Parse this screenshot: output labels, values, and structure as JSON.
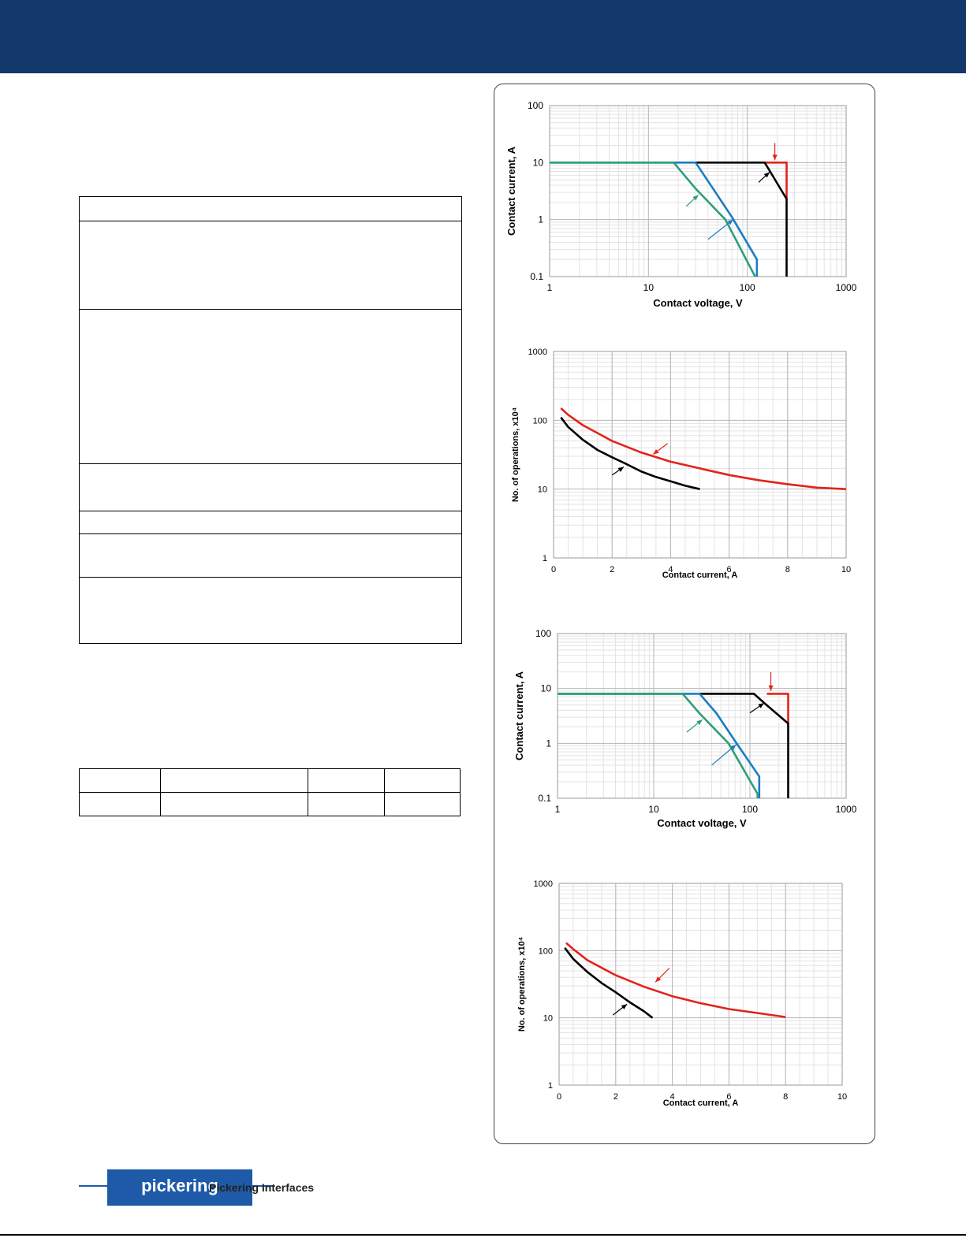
{
  "footer": {
    "logo_text": "pickering",
    "company": "Pickering Interfaces"
  },
  "colors": {
    "header": "#13386b",
    "red": "#e2231a",
    "black": "#000000",
    "blue": "#1a7dc4",
    "green": "#2e9e7a"
  },
  "charts": [
    {
      "type": "line",
      "xscale": "log",
      "yscale": "log",
      "xlim": [
        1,
        1000
      ],
      "ylim": [
        0.1,
        100
      ],
      "xticks": [
        "1",
        "10",
        "100",
        "1000"
      ],
      "yticks": [
        "0.1",
        "1",
        "10",
        "100"
      ],
      "xlabel": "Contact voltage, V",
      "ylabel": "Contact current, A",
      "series": [
        {
          "color": "red",
          "points": [
            [
              150,
              10
            ],
            [
              250,
              10
            ],
            [
              250,
              2.3
            ]
          ]
        },
        {
          "color": "black",
          "points": [
            [
              30,
              10
            ],
            [
              150,
              10
            ],
            [
              170,
              7
            ],
            [
              250,
              2.3
            ],
            [
              250,
              0.1
            ]
          ]
        },
        {
          "color": "blue",
          "points": [
            [
              1,
              10
            ],
            [
              30,
              10
            ],
            [
              45,
              3.5
            ],
            [
              70,
              1.1
            ],
            [
              125,
              0.2
            ],
            [
              125,
              0.1
            ]
          ]
        },
        {
          "color": "green",
          "points": [
            [
              1,
              10
            ],
            [
              18,
              10
            ],
            [
              30,
              3.5
            ],
            [
              60,
              1.0
            ],
            [
              120,
              0.1
            ]
          ]
        }
      ],
      "arrows": [
        {
          "color": "red",
          "from": [
            190,
            22
          ],
          "to": [
            190,
            11
          ]
        },
        {
          "color": "black",
          "from": [
            130,
            4.5
          ],
          "to": [
            168,
            6.8
          ]
        },
        {
          "color": "blue",
          "from": [
            40,
            0.45
          ],
          "to": [
            72,
            1.0
          ]
        },
        {
          "color": "green",
          "from": [
            24,
            1.7
          ],
          "to": [
            32,
            2.7
          ]
        }
      ]
    },
    {
      "type": "line",
      "xscale": "linear",
      "yscale": "log",
      "xlim": [
        0,
        10
      ],
      "ylim": [
        1,
        1000
      ],
      "xticks": [
        "0",
        "2",
        "4",
        "6",
        "8",
        "10"
      ],
      "yticks": [
        "1",
        "10",
        "100",
        "1000"
      ],
      "xlabel": "Contact current, A",
      "ylabel": "No. of operations, x10⁴",
      "series": [
        {
          "color": "red",
          "points": [
            [
              0.25,
              150
            ],
            [
              0.5,
              120
            ],
            [
              1,
              85
            ],
            [
              2,
              50
            ],
            [
              3,
              34
            ],
            [
              4,
              25
            ],
            [
              5,
              20
            ],
            [
              6,
              16
            ],
            [
              7,
              13.5
            ],
            [
              8,
              11.8
            ],
            [
              9,
              10.5
            ],
            [
              10,
              10
            ]
          ]
        },
        {
          "color": "black",
          "points": [
            [
              0.25,
              110
            ],
            [
              0.5,
              80
            ],
            [
              1,
              52
            ],
            [
              1.5,
              37
            ],
            [
              2,
              29
            ],
            [
              2.5,
              23
            ],
            [
              3,
              18
            ],
            [
              3.5,
              15
            ],
            [
              4,
              13
            ],
            [
              4.5,
              11.2
            ],
            [
              5,
              10
            ]
          ]
        }
      ],
      "arrows": [
        {
          "color": "red",
          "from": [
            3.9,
            46
          ],
          "to": [
            3.4,
            32
          ]
        },
        {
          "color": "black",
          "from": [
            2.0,
            16
          ],
          "to": [
            2.4,
            21
          ]
        }
      ]
    },
    {
      "type": "line",
      "xscale": "log",
      "yscale": "log",
      "xlim": [
        1,
        1000
      ],
      "ylim": [
        0.1,
        100
      ],
      "xticks": [
        "1",
        "10",
        "100",
        "1000"
      ],
      "yticks": [
        "0.1",
        "1",
        "10",
        "100"
      ],
      "xlabel": "Contact voltage, V",
      "ylabel": "Contact current, A",
      "series": [
        {
          "color": "red",
          "points": [
            [
              150,
              8
            ],
            [
              250,
              8
            ],
            [
              250,
              2.3
            ]
          ]
        },
        {
          "color": "black",
          "points": [
            [
              30,
              8
            ],
            [
              110,
              8
            ],
            [
              140,
              5.5
            ],
            [
              250,
              2.3
            ],
            [
              250,
              0.1
            ]
          ]
        },
        {
          "color": "blue",
          "points": [
            [
              1,
              8
            ],
            [
              30,
              8
            ],
            [
              45,
              3.5
            ],
            [
              70,
              1.1
            ],
            [
              125,
              0.25
            ],
            [
              125,
              0.1
            ]
          ]
        },
        {
          "color": "green",
          "points": [
            [
              1,
              8
            ],
            [
              20,
              8
            ],
            [
              30,
              3.5
            ],
            [
              60,
              1.0
            ],
            [
              120,
              0.12
            ],
            [
              120,
              0.1
            ]
          ]
        }
      ],
      "arrows": [
        {
          "color": "red",
          "from": [
            165,
            20
          ],
          "to": [
            165,
            9
          ]
        },
        {
          "color": "black",
          "from": [
            100,
            3.6
          ],
          "to": [
            140,
            5.4
          ]
        },
        {
          "color": "blue",
          "from": [
            40,
            0.4
          ],
          "to": [
            72,
            0.95
          ]
        },
        {
          "color": "green",
          "from": [
            22,
            1.6
          ],
          "to": [
            32,
            2.7
          ]
        }
      ]
    },
    {
      "type": "line",
      "xscale": "linear",
      "yscale": "log",
      "xlim": [
        0,
        10
      ],
      "ylim": [
        1,
        1000
      ],
      "xticks": [
        "0",
        "2",
        "4",
        "6",
        "8",
        "10"
      ],
      "yticks": [
        "1",
        "10",
        "100",
        "1000"
      ],
      "xlabel": "Contact current, A",
      "ylabel": "No. of operations, x10⁴",
      "series": [
        {
          "color": "red",
          "points": [
            [
              0.25,
              130
            ],
            [
              0.5,
              105
            ],
            [
              1,
              72
            ],
            [
              2,
              43
            ],
            [
              3,
              29
            ],
            [
              4,
              21
            ],
            [
              5,
              16.5
            ],
            [
              6,
              13.5
            ],
            [
              7,
              11.8
            ],
            [
              8,
              10.3
            ]
          ]
        },
        {
          "color": "black",
          "points": [
            [
              0.2,
              110
            ],
            [
              0.5,
              75
            ],
            [
              1,
              48
            ],
            [
              1.5,
              33
            ],
            [
              2,
              24
            ],
            [
              2.5,
              17
            ],
            [
              3,
              12.5
            ],
            [
              3.3,
              10
            ]
          ]
        }
      ],
      "arrows": [
        {
          "color": "red",
          "from": [
            3.9,
            55
          ],
          "to": [
            3.4,
            34
          ]
        },
        {
          "color": "black",
          "from": [
            1.9,
            11
          ],
          "to": [
            2.4,
            16
          ]
        }
      ]
    }
  ]
}
